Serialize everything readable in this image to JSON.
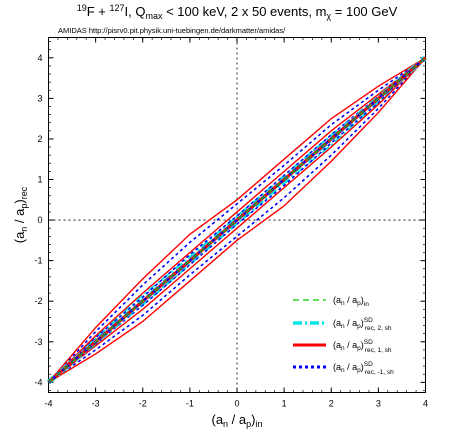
{
  "title": "19F + 127I, Qmax < 100 keV, 2 x 50 events, mχ = 100 GeV",
  "title_parts": {
    "a_sup": "19",
    "b": "F + ",
    "c_sup": "127",
    "d": "I, Q",
    "e_sub": "max",
    "f": " < 100 keV, 2 x 50 events, m",
    "g_sub": "χ",
    "h": " = 100 GeV"
  },
  "header_note": "AMIDAS   http://pisrv0.pit.physik.uni-tuebingen.de/darkmatter/amidas/",
  "axes": {
    "x_label": "(an / ap)in",
    "y_label": "(an / ap)rec",
    "x_label_parts": {
      "a": "(a",
      "b_sub": "n",
      "c": " / a",
      "d_sub": "p",
      "e": ")",
      "f_sub": "in"
    },
    "y_label_parts": {
      "a": "(a",
      "b_sub": "n",
      "c": " / a",
      "d_sub": "p",
      "e": ")",
      "f_sub": "rec"
    }
  },
  "legend_items": [
    {
      "id": "in",
      "label": "(an / ap)in",
      "parts": {
        "base": "(a",
        "s1": "n",
        "m": " / a",
        "s2": "p",
        ")": ")",
        "sub": "in",
        "sup": ""
      }
    },
    {
      "id": "rec2",
      "label": "(an / ap)SD rec, 2, sh",
      "parts": {
        "base": "(a",
        "s1": "n",
        "m": " / a",
        "s2": "p",
        ")": ")",
        "sub": "rec, 2, sh",
        "sup": "SD"
      }
    },
    {
      "id": "rec1",
      "label": "(an / ap)SD rec, 1, sh",
      "parts": {
        "base": "(a",
        "s1": "n",
        "m": " / a",
        "s2": "p",
        ")": ")",
        "sub": "rec, 1, sh",
        "sup": "SD"
      }
    },
    {
      "id": "recm1",
      "label": "(an / ap)SD rec, -1, sh",
      "parts": {
        "base": "(a",
        "s1": "n",
        "m": " / a",
        "s2": "p",
        ")": ")",
        "sub": "rec, -1, sh",
        "sup": "SD"
      }
    }
  ],
  "chart_data": {
    "type": "line",
    "title": "19F + 127I, Qmax < 100 keV, 2 x 50 events, mχ = 100 GeV",
    "xlabel": "(an / ap)in",
    "ylabel": "(an / ap)rec",
    "xlim": [
      -4,
      4
    ],
    "ylim": [
      -4.25,
      4.5
    ],
    "xticks": [
      -4,
      -3,
      -2,
      -1,
      0,
      1,
      2,
      3,
      4
    ],
    "yticks": [
      -4,
      -3,
      -2,
      -1,
      0,
      1,
      2,
      3,
      4
    ],
    "zero_lines": true,
    "legend_position": "bottom-right",
    "x": [
      -4,
      -3,
      -2,
      -1,
      0,
      1,
      2,
      3,
      4
    ],
    "series": [
      {
        "name": "(an / ap)in",
        "color": "#00cc00",
        "dash": "dashed",
        "role": "input",
        "y": [
          -4,
          -3,
          -2,
          -1,
          0,
          1,
          2,
          3,
          4
        ]
      },
      {
        "name": "(an / ap)SD rec, 2, sh",
        "color": "#00e5e5",
        "dash": "dash-dot",
        "role": "central",
        "y": [
          -4,
          -3,
          -2,
          -1,
          0,
          1,
          2,
          3,
          4
        ]
      },
      {
        "name": "(an / ap)SD rec, 2, sh",
        "color": "#00e5e5",
        "dash": "dash-dot",
        "role": "band",
        "y": [
          -4,
          -2.9,
          -1.85,
          -0.9,
          0.1,
          1.1,
          2.1,
          3.05,
          4
        ]
      },
      {
        "name": "(an / ap)SD rec, 2, sh",
        "color": "#00e5e5",
        "dash": "dash-dot",
        "role": "band",
        "y": [
          -4,
          -3.05,
          -2.1,
          -1.1,
          -0.1,
          0.9,
          1.85,
          2.9,
          4
        ]
      },
      {
        "name": "(an / ap)SD rec, 1, sh",
        "color": "#ff0000",
        "dash": "solid",
        "role": "central",
        "y": [
          -4,
          -3,
          -2,
          -1,
          0,
          1,
          2,
          3,
          4
        ]
      },
      {
        "name": "(an / ap)SD rec, 1, sh",
        "color": "#ff0000",
        "dash": "solid",
        "role": "band",
        "y": [
          -4,
          -2.65,
          -1.45,
          -0.35,
          0.5,
          1.5,
          2.5,
          3.3,
          4
        ]
      },
      {
        "name": "(an / ap)SD rec, 1, sh",
        "color": "#ff0000",
        "dash": "solid",
        "role": "band",
        "y": [
          -4,
          -3.3,
          -2.5,
          -1.5,
          -0.5,
          0.35,
          1.45,
          2.65,
          4
        ]
      },
      {
        "name": "(an / ap)SD rec, 1, sh",
        "color": "#ff0000",
        "dash": "solid",
        "role": "band",
        "y": [
          -4,
          -2.85,
          -1.8,
          -0.8,
          0.2,
          1.2,
          2.2,
          3.1,
          4
        ]
      },
      {
        "name": "(an / ap)SD rec, 1, sh",
        "color": "#ff0000",
        "dash": "solid",
        "role": "band",
        "y": [
          -4,
          -3.1,
          -2.2,
          -1.2,
          -0.2,
          0.8,
          1.8,
          2.85,
          4
        ]
      },
      {
        "name": "(an / ap)SD rec, -1, sh",
        "color": "#0000ff",
        "dash": "dotted",
        "role": "central",
        "y": [
          -4,
          -3,
          -2,
          -1,
          0,
          1,
          2,
          3,
          4
        ]
      },
      {
        "name": "(an / ap)SD rec, -1, sh",
        "color": "#0000ff",
        "dash": "dotted",
        "role": "band",
        "y": [
          -4,
          -2.75,
          -1.6,
          -0.55,
          0.4,
          1.35,
          2.35,
          3.2,
          4
        ]
      },
      {
        "name": "(an / ap)SD rec, -1, sh",
        "color": "#0000ff",
        "dash": "dotted",
        "role": "band",
        "y": [
          -4,
          -3.2,
          -2.35,
          -1.35,
          -0.4,
          0.55,
          1.6,
          2.75,
          4
        ]
      },
      {
        "name": "(an / ap)SD rec, -1, sh",
        "color": "#0000ff",
        "dash": "dotted",
        "role": "band",
        "y": [
          -4,
          -2.9,
          -1.9,
          -0.85,
          0.1,
          1.1,
          2.1,
          3.05,
          4
        ]
      },
      {
        "name": "(an / ap)SD rec, -1, sh",
        "color": "#0000ff",
        "dash": "dotted",
        "role": "band",
        "y": [
          -4,
          -3.05,
          -2.1,
          -1.1,
          -0.1,
          0.85,
          1.9,
          2.9,
          4
        ]
      }
    ]
  }
}
